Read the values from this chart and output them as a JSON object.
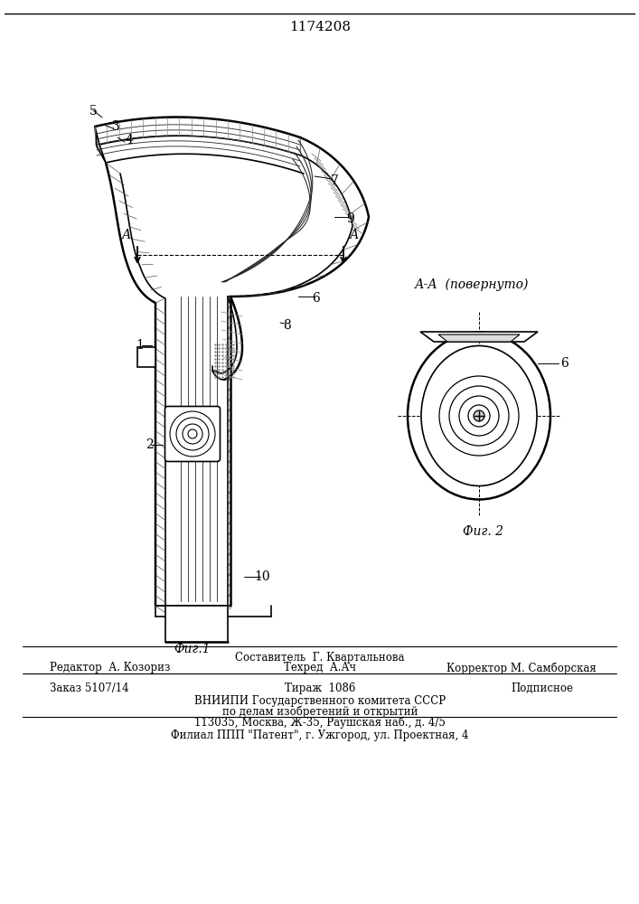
{
  "patent_number": "1174208",
  "fig1_caption": "Фиг.1",
  "fig2_caption": "Фиг. 2",
  "section_label": "А-А  (повернуто)",
  "footer_line1": "Составитель  Г. Квартальнова",
  "footer_line2_left": "Редактор  А. Козориз",
  "footer_line2_mid": "Техред  А.Ач",
  "footer_line2_right": "Корректор М. Самборская",
  "footer_line3_left": "Заказ 5107/14",
  "footer_line3_mid": "Тираж  1086",
  "footer_line3_right": "Подписное",
  "footer_line4": "ВНИИПИ Государственного комитета СССР",
  "footer_line5": "по делам изобретений и открытий",
  "footer_line6": "113035, Москва, Ж-35, Раушская наб., д. 4/5",
  "footer_line7": "Филиал ППП \"Патент\", г. Ужгород, ул. Проектная, 4",
  "bg_color": "#ffffff",
  "line_color": "#000000"
}
